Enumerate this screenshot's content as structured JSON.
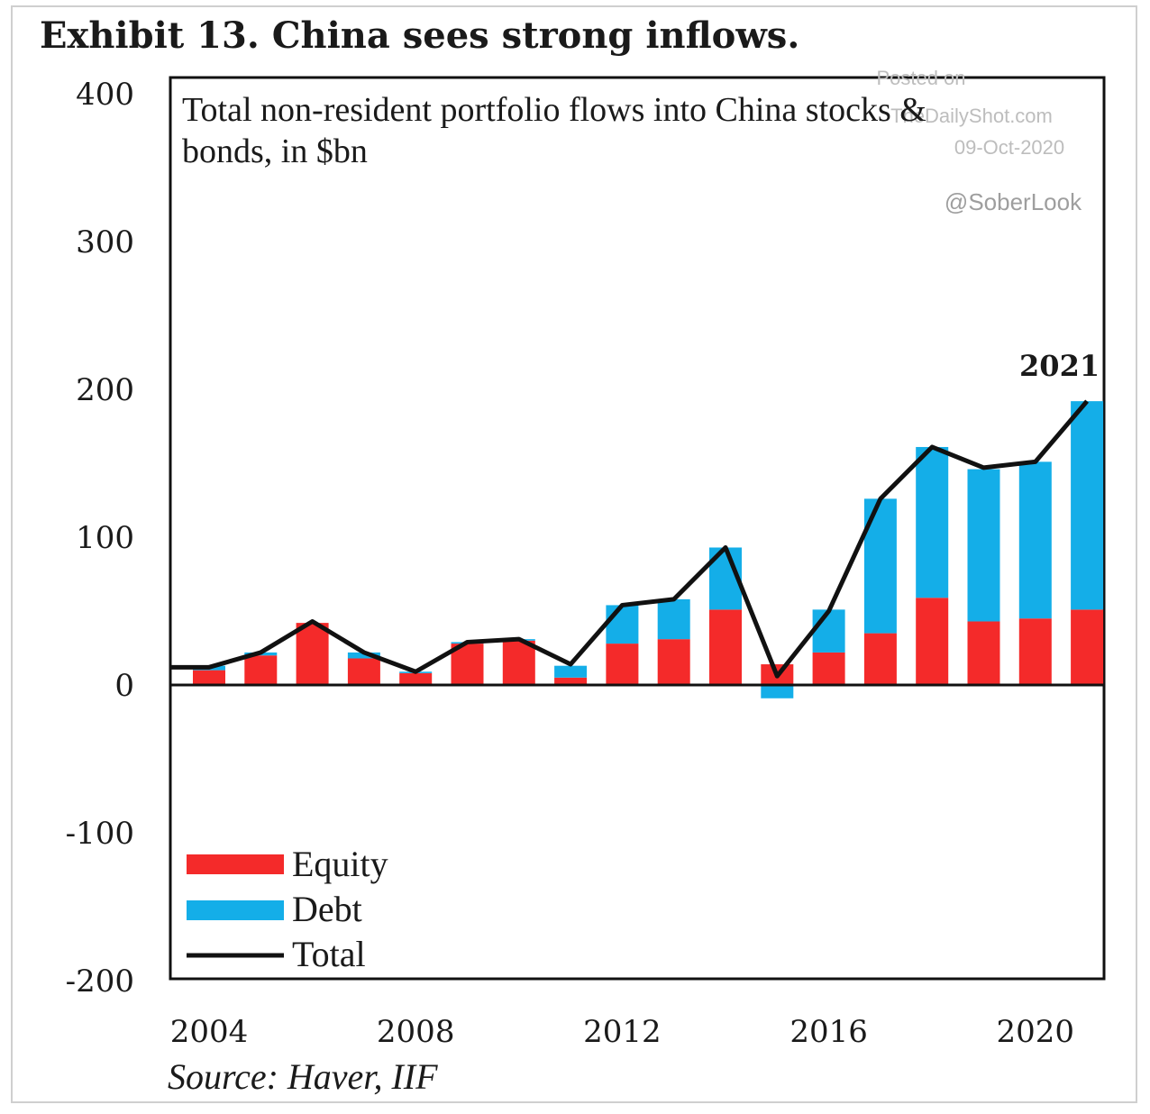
{
  "colors": {
    "equity": "#f42a2a",
    "debt": "#14aee8",
    "total": "#111111",
    "axis": "#111111"
  },
  "title": "Exhibit 13. China sees strong inflows.",
  "subtitle_line1": "Total non-resident portfolio flows into China stocks &",
  "subtitle_line2": "bonds, in $bn",
  "source": "Source: Haver, IIF",
  "watermark": {
    "posted_on": "Posted on",
    "site": "TheDailyShot.com",
    "date": "09-Oct-2020",
    "handle": "@SoberLook"
  },
  "annotation": "2021",
  "legend": {
    "equity": "Equity",
    "debt": "Debt",
    "total": "Total"
  },
  "chart_data": {
    "type": "bar",
    "stacked": true,
    "title": "Exhibit 13. China sees strong inflows.",
    "subtitle": "Total non-resident portfolio flows into China stocks & bonds, in $bn",
    "x": [
      2004,
      2005,
      2006,
      2007,
      2008,
      2009,
      2010,
      2011,
      2012,
      2013,
      2014,
      2015,
      2016,
      2017,
      2018,
      2019,
      2020,
      2021
    ],
    "series": [
      {
        "name": "Equity",
        "type": "bar",
        "values": [
          10,
          20,
          42,
          18,
          8,
          28,
          30,
          5,
          28,
          31,
          51,
          14,
          22,
          35,
          59,
          43,
          45,
          51
        ]
      },
      {
        "name": "Debt",
        "type": "bar",
        "values": [
          3,
          2,
          0,
          4,
          1,
          1,
          1,
          8,
          26,
          27,
          42,
          -9,
          29,
          91,
          102,
          103,
          106,
          141
        ]
      },
      {
        "name": "Total",
        "type": "line",
        "values": [
          12,
          22,
          43,
          22,
          9,
          29,
          31,
          14,
          54,
          58,
          93,
          6,
          50,
          126,
          161,
          147,
          151,
          192
        ]
      }
    ],
    "ylim": [
      -200,
      400
    ],
    "yticks": [
      400,
      300,
      200,
      100,
      0,
      -100,
      -200
    ],
    "xticks": [
      2004,
      2008,
      2012,
      2016,
      2020
    ],
    "annotations": [
      "2021"
    ],
    "legend_position": "bottom-left"
  }
}
